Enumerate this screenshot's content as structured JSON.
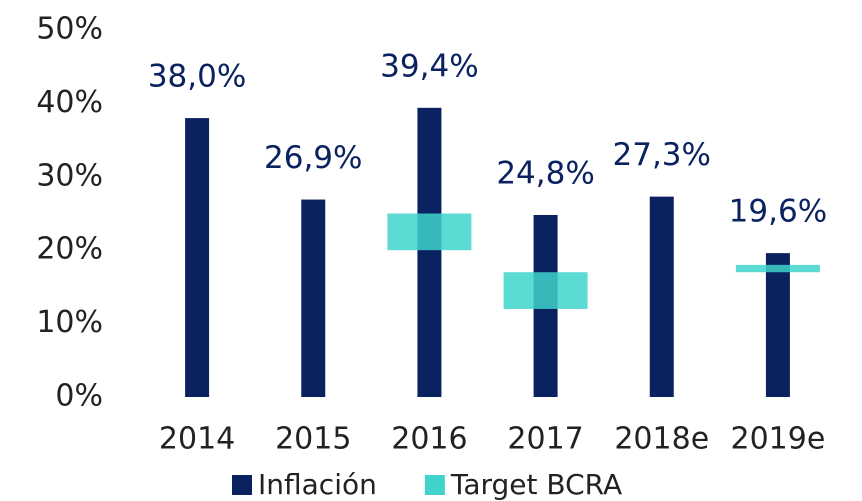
{
  "chart_data": {
    "type": "bar",
    "categories": [
      "2014",
      "2015",
      "2016",
      "2017",
      "2018e",
      "2019e"
    ],
    "series": [
      {
        "name": "Inflación",
        "color": "#0b2260",
        "values": [
          38.0,
          26.9,
          39.4,
          24.8,
          27.3,
          19.6
        ],
        "value_labels": [
          "38,0%",
          "26,9%",
          "39,4%",
          "24,8%",
          "27,3%",
          "19,6%"
        ]
      },
      {
        "name": "Target BCRA",
        "color": "#3fd3cc",
        "values": [
          null,
          null,
          [
            20,
            25
          ],
          [
            12,
            17
          ],
          null,
          [
            17,
            18
          ]
        ]
      }
    ],
    "ylim": [
      0,
      50
    ],
    "yticks": [
      {
        "value": 0,
        "label": "0%"
      },
      {
        "value": 10,
        "label": "10%"
      },
      {
        "value": 20,
        "label": "20%"
      },
      {
        "value": 30,
        "label": "30%"
      },
      {
        "value": 40,
        "label": "40%"
      },
      {
        "value": 50,
        "label": "50%"
      }
    ],
    "legend": "bottom"
  }
}
